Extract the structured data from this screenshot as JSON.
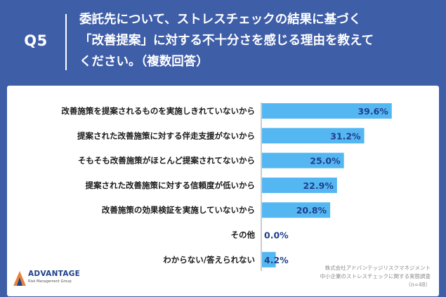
{
  "header": {
    "question_id": "Q5",
    "question_lines": [
      "委託先について、ストレスチェックの結果に基づく",
      "「改善提案」に対する不十分さを感じる理由を教えて",
      "ください。（複数回答）"
    ]
  },
  "colors": {
    "background": "#3f5ea8",
    "bar": "#55b7f2",
    "value_text": "#1f3f8a"
  },
  "chart_data": {
    "type": "bar",
    "orientation": "horizontal",
    "categories": [
      "改善施策を提案されるものを実施しきれていないから",
      "提案された改善施策に対する伴走支援がないから",
      "そもそも改善施策がほとんど提案されてないから",
      "提案された改善施策に対する信頼度が低いから",
      "改善施策の効果検証を実施していないから",
      "その他",
      "わからない/答えられない"
    ],
    "values": [
      39.6,
      31.2,
      25.0,
      22.9,
      20.8,
      0.0,
      4.2
    ],
    "value_labels": [
      "39.6%",
      "31.2%",
      "25.0%",
      "22.9%",
      "20.8%",
      "0.0%",
      "4.2%"
    ],
    "xlim": [
      0,
      42
    ]
  },
  "footer": {
    "logo_name": "ADVANTAGE",
    "logo_sub": "Risk Management Group",
    "source_lines": [
      "株式会社アドバンテッジリスクマネジメント",
      "中小企業のストレスチェックに関する実態調査",
      "（n=48）"
    ]
  }
}
